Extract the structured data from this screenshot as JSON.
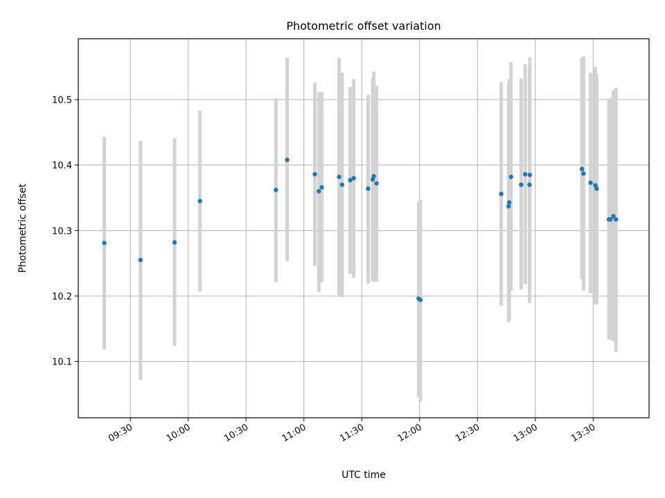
{
  "chart_data": {
    "type": "scatter",
    "title": "Photometric offset variation",
    "xlabel": "UTC time",
    "ylabel": "Photometric offset",
    "x_unit": "UTC time (HH:MM)",
    "xlim": [
      "09:03",
      "13:59"
    ],
    "ylim": [
      10.014,
      10.593
    ],
    "xticks": [
      "09:30",
      "10:00",
      "10:30",
      "11:00",
      "11:30",
      "12:00",
      "12:30",
      "13:00",
      "13:30"
    ],
    "yticks": [
      10.1,
      10.2,
      10.3,
      10.4,
      10.5
    ],
    "ytick_labels": [
      "10.1",
      "10.2",
      "10.3",
      "10.4",
      "10.5"
    ],
    "grid": true,
    "colors": {
      "points": "#1f77b4",
      "errorbars": "#d3d3d3",
      "grid": "#b0b0b0"
    },
    "points": [
      {
        "x": "09:16:30",
        "y": 10.281,
        "ylo": 10.118,
        "yhi": 10.443
      },
      {
        "x": "09:35:15",
        "y": 10.255,
        "ylo": 10.072,
        "yhi": 10.437
      },
      {
        "x": "09:52:55",
        "y": 10.282,
        "ylo": 10.124,
        "yhi": 10.441
      },
      {
        "x": "10:06:05",
        "y": 10.345,
        "ylo": 10.207,
        "yhi": 10.483
      },
      {
        "x": "10:45:30",
        "y": 10.362,
        "ylo": 10.221,
        "yhi": 10.502
      },
      {
        "x": "10:51:20",
        "y": 10.408,
        "ylo": 10.253,
        "yhi": 10.564
      },
      {
        "x": "11:05:40",
        "y": 10.386,
        "ylo": 10.246,
        "yhi": 10.526
      },
      {
        "x": "11:07:45",
        "y": 10.36,
        "ylo": 10.206,
        "yhi": 10.511
      },
      {
        "x": "11:09:15",
        "y": 10.366,
        "ylo": 10.221,
        "yhi": 10.512
      },
      {
        "x": "11:18:15",
        "y": 10.382,
        "ylo": 10.2,
        "yhi": 10.564
      },
      {
        "x": "11:19:50",
        "y": 10.37,
        "ylo": 10.198,
        "yhi": 10.541
      },
      {
        "x": "11:24:00",
        "y": 10.377,
        "ylo": 10.234,
        "yhi": 10.519
      },
      {
        "x": "11:25:50",
        "y": 10.38,
        "ylo": 10.228,
        "yhi": 10.531
      },
      {
        "x": "11:33:20",
        "y": 10.364,
        "ylo": 10.219,
        "yhi": 10.507
      },
      {
        "x": "11:35:40",
        "y": 10.378,
        "ylo": 10.222,
        "yhi": 10.533
      },
      {
        "x": "11:36:15",
        "y": 10.383,
        "ylo": 10.222,
        "yhi": 10.543
      },
      {
        "x": "11:37:40",
        "y": 10.372,
        "ylo": 10.222,
        "yhi": 10.521
      },
      {
        "x": "11:59:30",
        "y": 10.196,
        "ylo": 10.045,
        "yhi": 10.344
      },
      {
        "x": "12:00:25",
        "y": 10.194,
        "ylo": 10.039,
        "yhi": 10.347
      },
      {
        "x": "12:42:20",
        "y": 10.356,
        "ylo": 10.185,
        "yhi": 10.527
      },
      {
        "x": "12:46:10",
        "y": 10.337,
        "ylo": 10.16,
        "yhi": 10.523
      },
      {
        "x": "12:46:30",
        "y": 10.343,
        "ylo": 10.163,
        "yhi": 10.532
      },
      {
        "x": "12:47:25",
        "y": 10.382,
        "ylo": 10.208,
        "yhi": 10.557
      },
      {
        "x": "12:52:40",
        "y": 10.37,
        "ylo": 10.21,
        "yhi": 10.532
      },
      {
        "x": "12:54:45",
        "y": 10.386,
        "ylo": 10.218,
        "yhi": 10.554
      },
      {
        "x": "12:57:00",
        "y": 10.37,
        "ylo": 10.189,
        "yhi": 10.55
      },
      {
        "x": "12:57:10",
        "y": 10.385,
        "ylo": 10.205,
        "yhi": 10.565
      },
      {
        "x": "13:24:10",
        "y": 10.394,
        "ylo": 10.226,
        "yhi": 10.564
      },
      {
        "x": "13:25:00",
        "y": 10.387,
        "ylo": 10.208,
        "yhi": 10.566
      },
      {
        "x": "13:28:40",
        "y": 10.373,
        "ylo": 10.204,
        "yhi": 10.541
      },
      {
        "x": "13:31:10",
        "y": 10.369,
        "ylo": 10.187,
        "yhi": 10.55
      },
      {
        "x": "13:31:50",
        "y": 10.364,
        "ylo": 10.187,
        "yhi": 10.539
      },
      {
        "x": "13:38:10",
        "y": 10.317,
        "ylo": 10.134,
        "yhi": 10.501
      },
      {
        "x": "13:39:00",
        "y": 10.317,
        "ylo": 10.133,
        "yhi": 10.502
      },
      {
        "x": "13:40:30",
        "y": 10.322,
        "ylo": 10.131,
        "yhi": 10.514
      },
      {
        "x": "13:41:50",
        "y": 10.317,
        "ylo": 10.115,
        "yhi": 10.518
      }
    ]
  }
}
